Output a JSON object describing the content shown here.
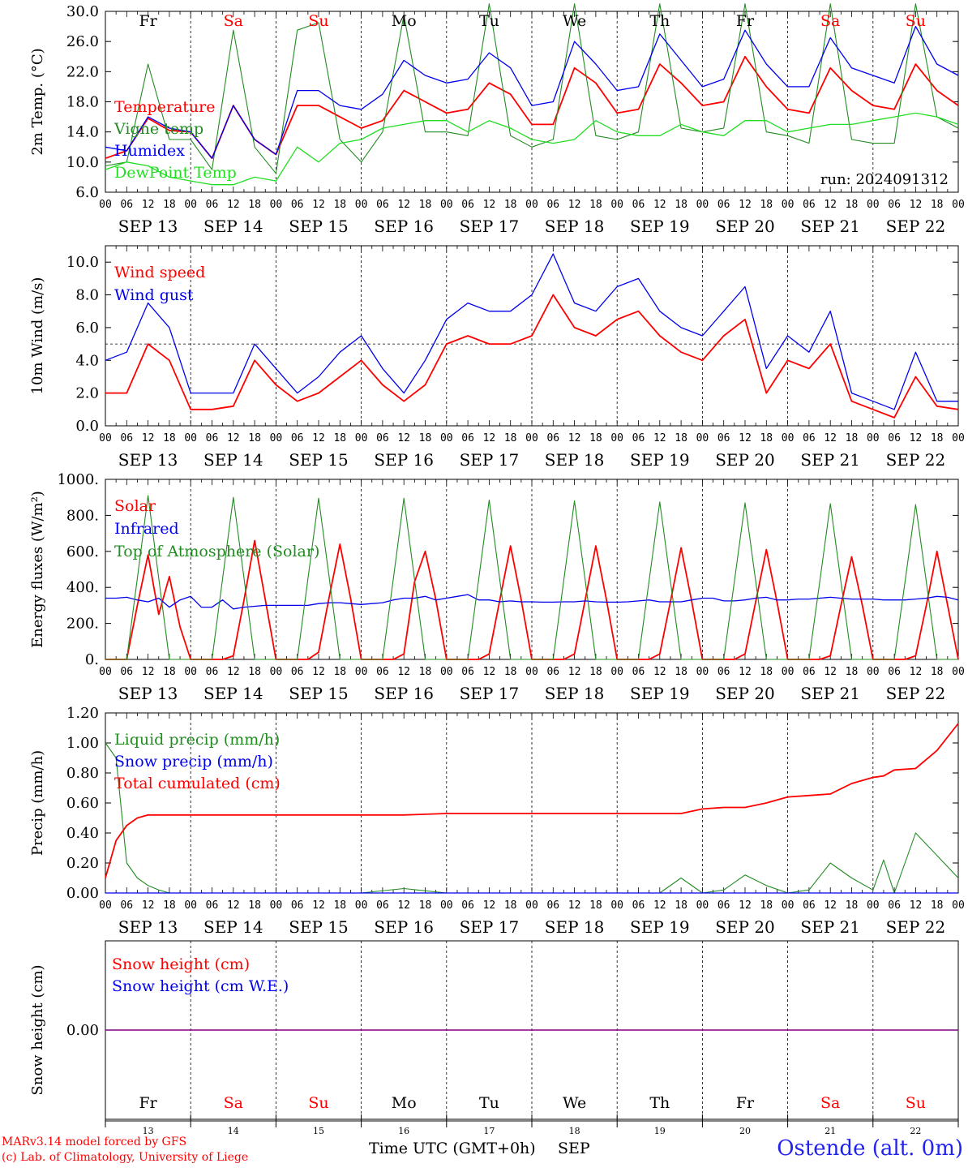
{
  "colors": {
    "red": "#ff0000",
    "green": "#228b22",
    "lightgreen": "#22dd22",
    "blue": "#0000ee",
    "purple": "#800080",
    "title_blue": "#2222ee"
  },
  "x_axis": {
    "hour_labels": [
      "00",
      "06",
      "12",
      "18"
    ],
    "final_hour_label": "00",
    "date_labels": [
      "SEP 13",
      "SEP 14",
      "SEP 15",
      "SEP 16",
      "SEP 17",
      "SEP 18",
      "SEP 19",
      "SEP 20",
      "SEP 21",
      "SEP 22"
    ],
    "weekdays": [
      {
        "name": "Fr",
        "weekend": false
      },
      {
        "name": "Sa",
        "weekend": true
      },
      {
        "name": "Su",
        "weekend": true
      },
      {
        "name": "Mo",
        "weekend": false
      },
      {
        "name": "Tu",
        "weekend": false
      },
      {
        "name": "We",
        "weekend": false
      },
      {
        "name": "Th",
        "weekend": false
      },
      {
        "name": "Fr",
        "weekend": false
      },
      {
        "name": "Sa",
        "weekend": true
      },
      {
        "name": "Su",
        "weekend": true
      }
    ],
    "day_numbers": [
      "13",
      "14",
      "15",
      "16",
      "17",
      "18",
      "19",
      "20",
      "21",
      "22"
    ],
    "title": "Time UTC (GMT+0h)",
    "month": "SEP"
  },
  "footer": {
    "model": "MARv3.14 model forced by GFS",
    "credit": "(c) Lab. of Climatology, University of Liege",
    "location": "Ostende (alt. 0m)"
  },
  "chart_data": [
    {
      "type": "line",
      "ylabel": "2m Temp. (°C)",
      "ylim": [
        6,
        30
      ],
      "yticks": [
        "6.0",
        "10.0",
        "14.0",
        "18.0",
        "22.0",
        "26.0",
        "30.0"
      ],
      "annotation": "run: 2024091312",
      "x": [
        0,
        6,
        12,
        18,
        24,
        30,
        36,
        42,
        48,
        54,
        60,
        66,
        72,
        78,
        84,
        90,
        96,
        102,
        108,
        114,
        120,
        126,
        132,
        138,
        144,
        150,
        156,
        162,
        168,
        174,
        180,
        186,
        192,
        198,
        204,
        210,
        216,
        222,
        228,
        234,
        240
      ],
      "series": [
        {
          "name": "Temperature",
          "color": "red",
          "values": [
            10.5,
            11.5,
            15.8,
            14.2,
            14.0,
            10.5,
            17.5,
            13.0,
            11.0,
            17.5,
            17.5,
            16.0,
            14.5,
            15.5,
            19.5,
            18.0,
            16.5,
            17.0,
            20.5,
            19.0,
            15.0,
            15.0,
            22.5,
            20.5,
            16.5,
            17.0,
            23.0,
            20.5,
            17.5,
            18.0,
            24.0,
            20.0,
            17.0,
            16.5,
            22.5,
            19.5,
            17.5,
            17.0,
            23.0,
            19.5,
            17.5
          ]
        },
        {
          "name": "Vigne temp",
          "color": "green",
          "values": [
            9.5,
            10.0,
            23.0,
            13.0,
            13.0,
            9.0,
            27.5,
            12.0,
            8.5,
            27.5,
            28.5,
            13.0,
            10.0,
            14.0,
            29.5,
            14.0,
            14.0,
            13.5,
            31.0,
            13.5,
            12.0,
            13.0,
            31.0,
            13.5,
            13.0,
            14.0,
            31.0,
            14.5,
            14.0,
            14.5,
            31.0,
            14.0,
            13.5,
            12.5,
            31.0,
            13.0,
            12.5,
            12.5,
            31.0,
            16.0,
            14.5
          ]
        },
        {
          "name": "Humidex",
          "color": "blue",
          "values": [
            12.0,
            11.5,
            16.0,
            14.5,
            14.0,
            10.5,
            17.5,
            13.0,
            11.0,
            19.5,
            19.5,
            17.5,
            17.0,
            19.0,
            23.5,
            21.5,
            20.5,
            21.0,
            24.5,
            22.5,
            17.5,
            18.0,
            26.0,
            23.0,
            19.5,
            20.0,
            27.0,
            23.5,
            20.0,
            21.0,
            27.5,
            23.0,
            20.0,
            20.0,
            26.5,
            22.5,
            21.5,
            20.5,
            28.0,
            23.0,
            21.5
          ]
        },
        {
          "name": "DewPoint Temp",
          "color": "lightgreen",
          "values": [
            9.0,
            10.0,
            9.5,
            8.0,
            7.5,
            7.0,
            7.0,
            8.0,
            7.5,
            12.0,
            10.0,
            12.5,
            13.0,
            14.5,
            15.0,
            15.5,
            15.5,
            14.0,
            15.5,
            14.5,
            13.0,
            12.5,
            13.0,
            15.5,
            14.0,
            13.5,
            13.5,
            15.0,
            14.0,
            13.5,
            15.5,
            15.5,
            14.0,
            14.5,
            15.0,
            15.0,
            15.5,
            16.0,
            16.5,
            16.0,
            15.0
          ]
        }
      ]
    },
    {
      "type": "line",
      "ylabel": "10m Wind (m/s)",
      "ylim": [
        0,
        11
      ],
      "yticks": [
        "0.0",
        "2.0",
        "4.0",
        "6.0",
        "8.0",
        "10.0"
      ],
      "reference_line": 5,
      "x": [
        0,
        6,
        12,
        18,
        24,
        30,
        36,
        42,
        48,
        54,
        60,
        66,
        72,
        78,
        84,
        90,
        96,
        102,
        108,
        114,
        120,
        126,
        132,
        138,
        144,
        150,
        156,
        162,
        168,
        174,
        180,
        186,
        192,
        198,
        204,
        210,
        216,
        222,
        228,
        234,
        240
      ],
      "series": [
        {
          "name": "Wind speed",
          "color": "red",
          "values": [
            2.0,
            2.0,
            5.0,
            4.0,
            1.0,
            1.0,
            1.2,
            4.0,
            2.5,
            1.5,
            2.0,
            3.0,
            4.0,
            2.5,
            1.5,
            2.5,
            5.0,
            5.5,
            5.0,
            5.0,
            5.5,
            8.0,
            6.0,
            5.5,
            6.5,
            7.0,
            5.5,
            4.5,
            4.0,
            5.5,
            6.5,
            2.0,
            4.0,
            3.5,
            5.0,
            1.5,
            1.0,
            0.5,
            3.0,
            1.2,
            1.0
          ]
        },
        {
          "name": "Wind gust",
          "color": "blue",
          "values": [
            4.0,
            4.5,
            7.5,
            6.0,
            2.0,
            2.0,
            2.0,
            5.0,
            3.5,
            2.0,
            3.0,
            4.5,
            5.5,
            3.5,
            2.0,
            4.0,
            6.5,
            7.5,
            7.0,
            7.0,
            8.0,
            10.5,
            7.5,
            7.0,
            8.5,
            9.0,
            7.0,
            6.0,
            5.5,
            7.0,
            8.5,
            3.5,
            5.5,
            4.5,
            7.0,
            2.0,
            1.5,
            1.0,
            4.5,
            1.5,
            1.5
          ]
        }
      ]
    },
    {
      "type": "line",
      "ylabel": "Energy fluxes (W/m²)",
      "ylim": [
        0,
        1000
      ],
      "yticks": [
        "0.",
        "200.",
        "400.",
        "600.",
        "800.",
        "1000."
      ],
      "x": [
        0,
        3,
        6,
        9,
        12,
        15,
        18,
        21,
        24,
        27,
        30,
        33,
        36,
        39,
        42,
        45,
        48,
        51,
        54,
        57,
        60,
        63,
        66,
        69,
        72,
        75,
        78,
        81,
        84,
        87,
        90,
        93,
        96,
        99,
        102,
        105,
        108,
        111,
        114,
        117,
        120,
        123,
        126,
        129,
        132,
        135,
        138,
        141,
        144,
        147,
        150,
        153,
        156,
        159,
        162,
        165,
        168,
        171,
        174,
        177,
        180,
        183,
        186,
        189,
        192,
        195,
        198,
        201,
        204,
        207,
        210,
        213,
        216,
        219,
        222,
        225,
        228,
        231,
        234,
        237,
        240
      ],
      "series": [
        {
          "name": "Solar",
          "color": "red",
          "values": [
            0,
            0,
            0,
            300,
            580,
            250,
            460,
            180,
            0,
            0,
            0,
            0,
            20,
            330,
            660,
            330,
            0,
            0,
            0,
            0,
            40,
            350,
            640,
            340,
            0,
            0,
            0,
            0,
            30,
            430,
            600,
            330,
            0,
            0,
            0,
            0,
            30,
            330,
            630,
            330,
            0,
            0,
            0,
            0,
            30,
            330,
            630,
            330,
            0,
            0,
            0,
            0,
            30,
            320,
            620,
            320,
            0,
            0,
            0,
            0,
            30,
            320,
            610,
            320,
            0,
            0,
            0,
            0,
            20,
            300,
            570,
            300,
            0,
            0,
            0,
            0,
            20,
            300,
            600,
            300,
            0
          ]
        },
        {
          "name": "Infrared",
          "color": "blue",
          "values": [
            340,
            340,
            345,
            330,
            320,
            340,
            290,
            330,
            350,
            290,
            290,
            330,
            280,
            290,
            295,
            300,
            300,
            300,
            300,
            300,
            310,
            315,
            315,
            310,
            305,
            310,
            315,
            330,
            340,
            340,
            350,
            330,
            340,
            350,
            360,
            330,
            330,
            320,
            325,
            320,
            320,
            318,
            318,
            320,
            320,
            325,
            320,
            318,
            318,
            320,
            325,
            330,
            320,
            320,
            320,
            330,
            340,
            340,
            325,
            325,
            330,
            340,
            345,
            330,
            330,
            335,
            335,
            340,
            345,
            340,
            335,
            335,
            335,
            330,
            330,
            330,
            335,
            340,
            350,
            345,
            330
          ]
        },
        {
          "name": "Top of Atmosphere (Solar)",
          "color": "green",
          "values": [
            0,
            0,
            0,
            450,
            910,
            450,
            0,
            0,
            0,
            0,
            0,
            450,
            900,
            450,
            0,
            0,
            0,
            0,
            0,
            450,
            895,
            450,
            0,
            0,
            0,
            0,
            0,
            445,
            895,
            445,
            0,
            0,
            0,
            0,
            0,
            440,
            885,
            440,
            0,
            0,
            0,
            0,
            0,
            440,
            880,
            440,
            0,
            0,
            0,
            0,
            0,
            435,
            875,
            435,
            0,
            0,
            0,
            0,
            0,
            435,
            870,
            435,
            0,
            0,
            0,
            0,
            0,
            430,
            865,
            430,
            0,
            0,
            0,
            0,
            0,
            430,
            860,
            430,
            0,
            0,
            0
          ]
        }
      ]
    },
    {
      "type": "line",
      "ylabel": "Precip (mm/h)",
      "ylim": [
        0,
        1.2
      ],
      "yticks": [
        "0.00",
        "0.20",
        "0.40",
        "0.60",
        "0.80",
        "1.00",
        "1.20"
      ],
      "x": [
        0,
        3,
        6,
        9,
        12,
        15,
        18,
        21,
        24,
        36,
        48,
        60,
        72,
        84,
        96,
        108,
        120,
        132,
        144,
        156,
        162,
        168,
        174,
        180,
        186,
        192,
        198,
        204,
        210,
        216,
        219,
        222,
        228,
        234,
        240
      ],
      "series": [
        {
          "name": "Liquid precip (mm/h)",
          "color": "green",
          "values": [
            1.0,
            0.9,
            0.2,
            0.1,
            0.05,
            0.02,
            0,
            0,
            0,
            0,
            0,
            0,
            0,
            0.03,
            0,
            0,
            0,
            0,
            0,
            0,
            0.1,
            0,
            0.02,
            0.12,
            0.05,
            0,
            0.02,
            0.2,
            0.1,
            0.02,
            0.22,
            0,
            0.4,
            0.25,
            0.1
          ]
        },
        {
          "name": "Snow precip (mm/h)",
          "color": "blue",
          "values": [
            0,
            0,
            0,
            0,
            0,
            0,
            0,
            0,
            0,
            0,
            0,
            0,
            0,
            0,
            0,
            0,
            0,
            0,
            0,
            0,
            0,
            0,
            0,
            0,
            0,
            0,
            0,
            0,
            0,
            0,
            0,
            0,
            0,
            0,
            0
          ]
        },
        {
          "name": "Total cumulated (cm)",
          "color": "red",
          "values": [
            0.1,
            0.35,
            0.45,
            0.5,
            0.52,
            0.52,
            0.52,
            0.52,
            0.52,
            0.52,
            0.52,
            0.52,
            0.52,
            0.52,
            0.53,
            0.53,
            0.53,
            0.53,
            0.53,
            0.53,
            0.53,
            0.56,
            0.57,
            0.57,
            0.6,
            0.64,
            0.65,
            0.66,
            0.73,
            0.77,
            0.78,
            0.82,
            0.83,
            0.95,
            1.13
          ]
        }
      ]
    },
    {
      "type": "line",
      "ylabel": "Snow height (cm)",
      "yticks": [
        "0.00"
      ],
      "x": [
        0,
        240
      ],
      "series": [
        {
          "name": "Snow height (cm)",
          "color": "red",
          "values": [
            0,
            0
          ]
        },
        {
          "name": "Snow height (cm W.E.)",
          "color": "blue",
          "values": [
            0,
            0
          ]
        }
      ]
    }
  ]
}
